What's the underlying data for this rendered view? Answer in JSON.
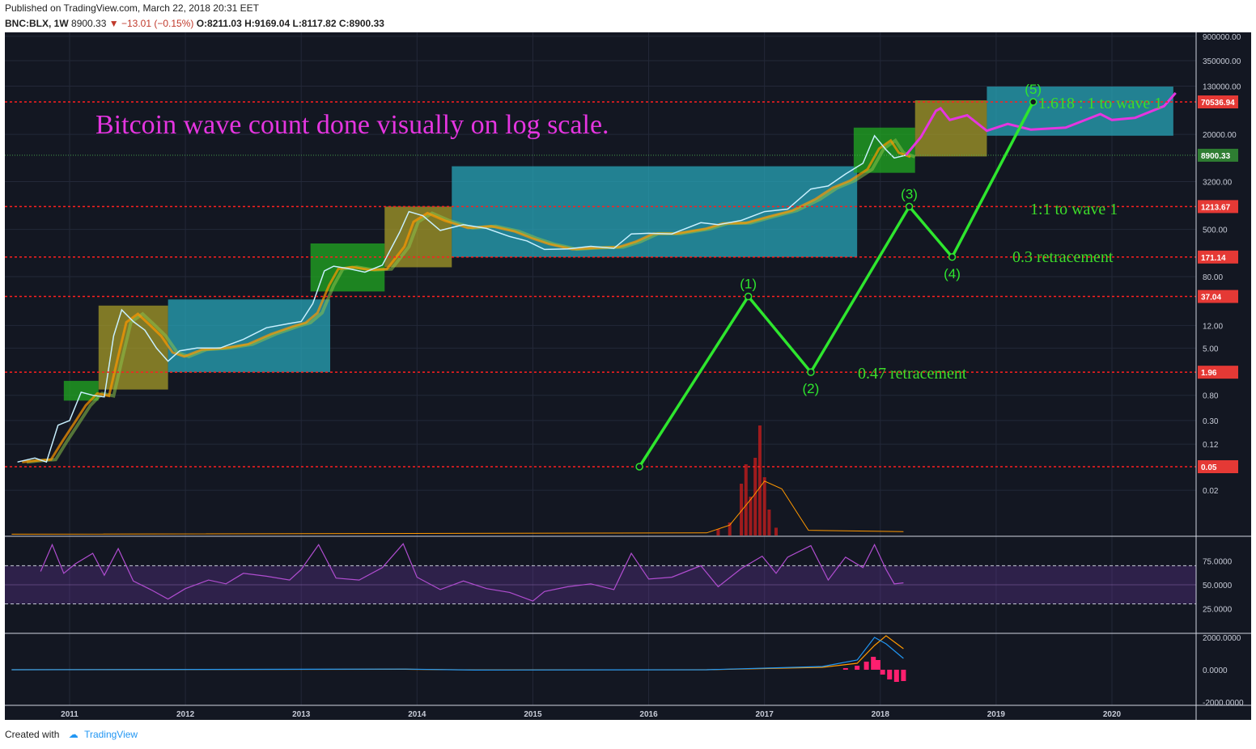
{
  "header": {
    "published": "Published on TradingView.com, March 22, 2018 20:31 EET",
    "symbol": "BNC:BLX, 1W",
    "last": "8900.33",
    "change": "▼ −13.01 (−0.15%)",
    "ohlc": {
      "o": "O:8211.03",
      "h": "H:9169.04",
      "l": "L:8117.82",
      "c": "C:8900.33"
    }
  },
  "footer": {
    "created": "Created with",
    "brand": "TradingView"
  },
  "chart_data": [
    {
      "type": "line",
      "y_scale": "log",
      "title": "",
      "x_ticks": [
        "2011",
        "2012",
        "2013",
        "2014",
        "2015",
        "2016",
        "2017",
        "2018",
        "2019",
        "2020"
      ],
      "y_ticks": [
        "900000.00",
        "350000.00",
        "130000.00",
        "20000.00",
        "3200.00",
        "500.00",
        "80.00",
        "12.00",
        "5.00",
        "0.80",
        "0.30",
        "0.12",
        "0.02"
      ],
      "price_labels": [
        {
          "label": "70536.94",
          "value": 70536.94,
          "color": "#e53935"
        },
        {
          "label": "8900.33",
          "value": 8900.33,
          "color": "#2e7d32"
        },
        {
          "label": "1213.67",
          "value": 1213.67,
          "color": "#e53935"
        },
        {
          "label": "171.14",
          "value": 171.14,
          "color": "#e53935"
        },
        {
          "label": "37.04",
          "value": 37.04,
          "color": "#e53935"
        },
        {
          "label": "1.96",
          "value": 1.96,
          "color": "#e53935"
        },
        {
          "label": "0.05",
          "value": 0.05,
          "color": "#e53935"
        }
      ],
      "waves": [
        {
          "label": "",
          "x": 2015.92,
          "y": 0.05
        },
        {
          "label": "(1)",
          "x": 2016.86,
          "y": 37.04
        },
        {
          "label": "(2)",
          "x": 2017.4,
          "y": 1.96
        },
        {
          "label": "(3)",
          "x": 2018.25,
          "y": 1213.67
        },
        {
          "label": "(4)",
          "x": 2018.62,
          "y": 171.14
        },
        {
          "label": "(5)",
          "x": 2019.32,
          "y": 70536.94
        }
      ],
      "annotations": {
        "title": "Bitcoin wave count done visually on log scale.",
        "wave1_ext": "1.618 : 1 to wave 1",
        "wave1_eq": "1:1 to wave 1",
        "ret03": "0.3 retracement",
        "ret047": "0.47 retracement"
      },
      "price_series": [
        [
          2010.55,
          0.06
        ],
        [
          2010.7,
          0.07
        ],
        [
          2010.8,
          0.06
        ],
        [
          2010.9,
          0.25
        ],
        [
          2011.0,
          0.3
        ],
        [
          2011.1,
          0.9
        ],
        [
          2011.2,
          0.8
        ],
        [
          2011.3,
          0.75
        ],
        [
          2011.38,
          8
        ],
        [
          2011.45,
          22
        ],
        [
          2011.55,
          14
        ],
        [
          2011.65,
          10
        ],
        [
          2011.75,
          5
        ],
        [
          2011.85,
          3
        ],
        [
          2011.95,
          4.5
        ],
        [
          2012.1,
          5
        ],
        [
          2012.3,
          5
        ],
        [
          2012.5,
          7
        ],
        [
          2012.7,
          11
        ],
        [
          2012.9,
          13
        ],
        [
          2013.0,
          14
        ],
        [
          2013.1,
          28
        ],
        [
          2013.2,
          100
        ],
        [
          2013.28,
          120
        ],
        [
          2013.4,
          110
        ],
        [
          2013.55,
          95
        ],
        [
          2013.7,
          125
        ],
        [
          2013.85,
          450
        ],
        [
          2013.93,
          1000
        ],
        [
          2014.05,
          850
        ],
        [
          2014.2,
          480
        ],
        [
          2014.4,
          600
        ],
        [
          2014.6,
          520
        ],
        [
          2014.8,
          380
        ],
        [
          2014.95,
          320
        ],
        [
          2015.1,
          230
        ],
        [
          2015.3,
          235
        ],
        [
          2015.5,
          260
        ],
        [
          2015.7,
          240
        ],
        [
          2015.85,
          420
        ],
        [
          2016.0,
          430
        ],
        [
          2016.2,
          420
        ],
        [
          2016.45,
          650
        ],
        [
          2016.6,
          600
        ],
        [
          2016.8,
          710
        ],
        [
          2017.0,
          1000
        ],
        [
          2017.2,
          1100
        ],
        [
          2017.4,
          2400
        ],
        [
          2017.55,
          2700
        ],
        [
          2017.7,
          4300
        ],
        [
          2017.85,
          6500
        ],
        [
          2017.95,
          19000
        ],
        [
          2018.05,
          11000
        ],
        [
          2018.12,
          8000
        ],
        [
          2018.22,
          8900
        ]
      ],
      "forecast_series": [
        [
          2018.22,
          8900
        ],
        [
          2018.35,
          18000
        ],
        [
          2018.48,
          50000
        ],
        [
          2018.52,
          55000
        ],
        [
          2018.6,
          35000
        ],
        [
          2018.75,
          42000
        ],
        [
          2018.92,
          23000
        ],
        [
          2019.1,
          30000
        ],
        [
          2019.3,
          24000
        ],
        [
          2019.6,
          26000
        ],
        [
          2019.9,
          44000
        ],
        [
          2020.0,
          35000
        ],
        [
          2020.2,
          38000
        ],
        [
          2020.45,
          60000
        ],
        [
          2020.55,
          100000
        ]
      ],
      "boxes": [
        {
          "x0": 2010.95,
          "x1": 2011.25,
          "y0": 0.65,
          "y1": 1.4,
          "color": "green"
        },
        {
          "x0": 2011.25,
          "x1": 2011.85,
          "y0": 1.0,
          "y1": 26,
          "color": "olive"
        },
        {
          "x0": 2011.85,
          "x1": 2013.25,
          "y0": 1.96,
          "y1": 33,
          "color": "teal"
        },
        {
          "x0": 2013.08,
          "x1": 2013.72,
          "y0": 45,
          "y1": 290,
          "color": "green"
        },
        {
          "x0": 2013.72,
          "x1": 2014.3,
          "y0": 115,
          "y1": 1213.67,
          "color": "olive"
        },
        {
          "x0": 2014.3,
          "x1": 2017.8,
          "y0": 171.14,
          "y1": 5800,
          "color": "teal"
        },
        {
          "x0": 2017.77,
          "x1": 2018.3,
          "y0": 4500,
          "y1": 26000,
          "color": "green"
        },
        {
          "x0": 2018.3,
          "x1": 2018.92,
          "y0": 8500,
          "y1": 75000,
          "color": "olive"
        },
        {
          "x0": 2018.92,
          "x1": 2020.53,
          "y0": 19000,
          "y1": 128000,
          "color": "teal"
        }
      ],
      "volume_series": [
        [
          2016.6,
          0.05
        ],
        [
          2016.7,
          0.1
        ],
        [
          2016.8,
          0.4
        ],
        [
          2016.84,
          0.55
        ],
        [
          2016.88,
          0.3
        ],
        [
          2016.92,
          0.6
        ],
        [
          2016.96,
          0.85
        ],
        [
          2017.0,
          0.45
        ],
        [
          2017.04,
          0.2
        ],
        [
          2017.1,
          0.06
        ]
      ],
      "volume_ma": [
        [
          2010.5,
          0.01
        ],
        [
          2016.5,
          0.02
        ],
        [
          2016.7,
          0.08
        ],
        [
          2016.9,
          0.3
        ],
        [
          2017.0,
          0.42
        ],
        [
          2017.15,
          0.36
        ],
        [
          2017.3,
          0.15
        ],
        [
          2017.38,
          0.04
        ],
        [
          2018.2,
          0.03
        ]
      ]
    },
    {
      "type": "line",
      "title": "",
      "y_ticks": [
        "75.0000",
        "50.0000",
        "25.0000"
      ],
      "ylim": [
        0,
        100
      ],
      "bands": [
        30,
        70
      ],
      "rsi_series": [
        [
          2010.75,
          64
        ],
        [
          2010.85,
          92
        ],
        [
          2010.95,
          62
        ],
        [
          2011.05,
          72
        ],
        [
          2011.2,
          83
        ],
        [
          2011.3,
          60
        ],
        [
          2011.42,
          88
        ],
        [
          2011.55,
          54
        ],
        [
          2011.7,
          45
        ],
        [
          2011.85,
          35
        ],
        [
          2012.0,
          46
        ],
        [
          2012.2,
          55
        ],
        [
          2012.35,
          51
        ],
        [
          2012.5,
          62
        ],
        [
          2012.7,
          59
        ],
        [
          2012.9,
          55
        ],
        [
          2013.0,
          66
        ],
        [
          2013.15,
          92
        ],
        [
          2013.3,
          57
        ],
        [
          2013.5,
          55
        ],
        [
          2013.7,
          68
        ],
        [
          2013.88,
          93
        ],
        [
          2014.0,
          58
        ],
        [
          2014.2,
          45
        ],
        [
          2014.4,
          54
        ],
        [
          2014.6,
          46
        ],
        [
          2014.8,
          42
        ],
        [
          2015.0,
          33
        ],
        [
          2015.1,
          43
        ],
        [
          2015.3,
          48
        ],
        [
          2015.5,
          51
        ],
        [
          2015.7,
          45
        ],
        [
          2015.85,
          83
        ],
        [
          2016.0,
          56
        ],
        [
          2016.2,
          58
        ],
        [
          2016.45,
          70
        ],
        [
          2016.6,
          48
        ],
        [
          2016.8,
          67
        ],
        [
          2016.98,
          80
        ],
        [
          2017.1,
          62
        ],
        [
          2017.2,
          79
        ],
        [
          2017.4,
          91
        ],
        [
          2017.55,
          55
        ],
        [
          2017.7,
          79
        ],
        [
          2017.85,
          68
        ],
        [
          2017.95,
          92
        ],
        [
          2018.05,
          66
        ],
        [
          2018.12,
          51
        ],
        [
          2018.2,
          52
        ]
      ]
    },
    {
      "type": "line",
      "title": "",
      "y_ticks": [
        "2000.0000",
        "0.0000",
        "-2000.0000"
      ],
      "ylim": [
        -2200,
        2200
      ],
      "macd_series": [
        [
          2010.5,
          0
        ],
        [
          2013.9,
          40
        ],
        [
          2014.5,
          -20
        ],
        [
          2016.5,
          0
        ],
        [
          2017.5,
          200
        ],
        [
          2017.8,
          600
        ],
        [
          2017.95,
          2000
        ],
        [
          2018.05,
          1600
        ],
        [
          2018.2,
          700
        ]
      ],
      "signal_series": [
        [
          2010.5,
          0
        ],
        [
          2013.9,
          30
        ],
        [
          2014.5,
          -10
        ],
        [
          2016.5,
          0
        ],
        [
          2017.5,
          150
        ],
        [
          2017.8,
          400
        ],
        [
          2017.95,
          1500
        ],
        [
          2018.05,
          2100
        ],
        [
          2018.2,
          1300
        ]
      ],
      "histogram": [
        [
          2017.7,
          100
        ],
        [
          2017.8,
          250
        ],
        [
          2017.88,
          500
        ],
        [
          2017.94,
          800
        ],
        [
          2017.98,
          600
        ],
        [
          2018.02,
          -300
        ],
        [
          2018.08,
          -600
        ],
        [
          2018.14,
          -750
        ],
        [
          2018.2,
          -700
        ]
      ]
    }
  ]
}
